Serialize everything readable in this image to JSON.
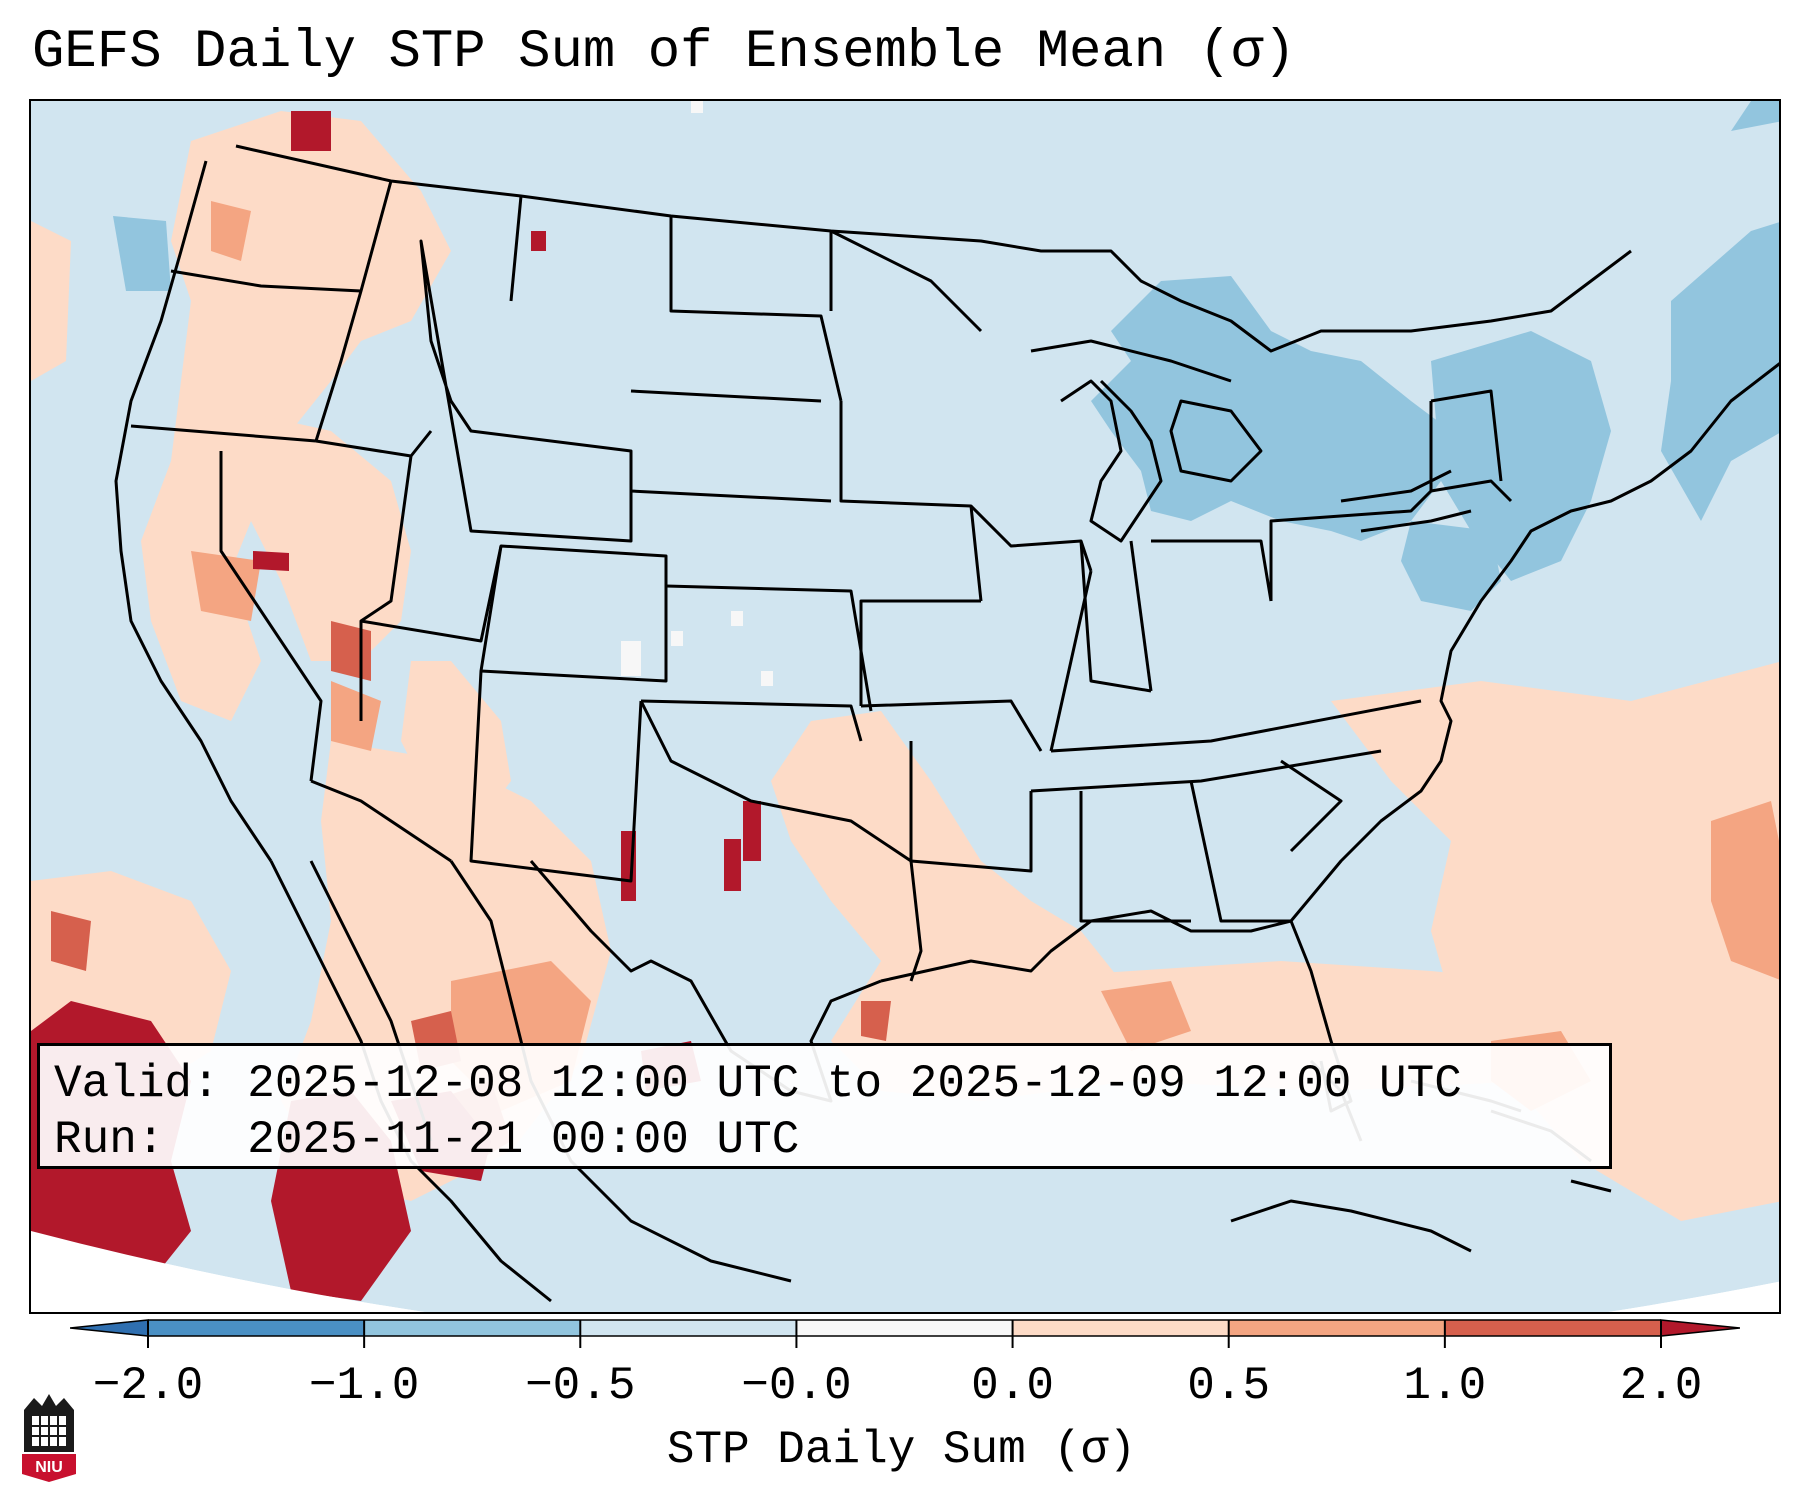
{
  "title": "GEFS Daily STP Sum of Ensemble Mean (σ)",
  "info": {
    "valid_line": "Valid: 2025-12-08 12:00 UTC to 2025-12-09 12:00 UTC",
    "run_line": "Run:   2025-11-21 00:00 UTC"
  },
  "colorbar": {
    "label": "STP Daily Sum (σ)",
    "ticks": [
      "−2.0",
      "−1.0",
      "−0.5",
      "−0.0",
      "0.0",
      "0.5",
      "1.0",
      "2.0"
    ],
    "bins": [
      {
        "range": "-2.0 to -1.0",
        "color": "#4a90c4"
      },
      {
        "range": "-1.0 to -0.5",
        "color": "#92c5de"
      },
      {
        "range": "-0.5 to -0.0",
        "color": "#d1e5f0"
      },
      {
        "range": "-0.0 to 0.0",
        "color": "#f7f7f7"
      },
      {
        "range": "0.0 to 0.5",
        "color": "#fddbc7"
      },
      {
        "range": "0.5 to 1.0",
        "color": "#f4a582"
      },
      {
        "range": "1.0 to 2.0",
        "color": "#d6604d"
      }
    ],
    "under_color": "#2f6fb0",
    "over_color": "#b2182b"
  },
  "map": {
    "background_color": "#d1e5f0",
    "outside_color": "#ffffff",
    "line_color": "#000000"
  },
  "logo": {
    "text": "NIU",
    "color": "#c8102e"
  }
}
